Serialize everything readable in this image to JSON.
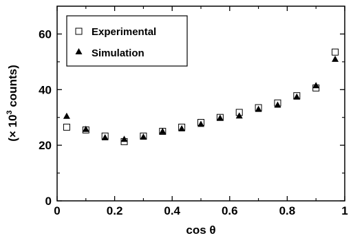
{
  "chart_data": {
    "type": "scatter",
    "xlabel": "cos θ",
    "ylabel_prefix": "(× 10",
    "ylabel_sup": "3",
    "ylabel_suffix": " counts)",
    "xlim": [
      0,
      1
    ],
    "ylim": [
      0,
      70
    ],
    "xticks": [
      0,
      0.2,
      0.4,
      0.6,
      0.8,
      1
    ],
    "xtick_labels": [
      "0",
      "0.2",
      "0.4",
      "0.6",
      "0.8",
      "1"
    ],
    "yticks": [
      0,
      20,
      40,
      60
    ],
    "ytick_labels": [
      "0",
      "20",
      "40",
      "60"
    ],
    "legend_position": "top-left",
    "series": [
      {
        "name": "Experimental",
        "marker": "open-square",
        "x": [
          0.0333,
          0.1,
          0.1667,
          0.2333,
          0.3,
          0.3667,
          0.4333,
          0.5,
          0.5667,
          0.6333,
          0.7,
          0.7667,
          0.8333,
          0.9,
          0.9667
        ],
        "y": [
          26.5,
          25.5,
          23.3,
          21.3,
          23.3,
          25.0,
          26.5,
          28.2,
          30.0,
          31.8,
          33.5,
          35.2,
          37.8,
          40.6,
          53.5
        ]
      },
      {
        "name": "Simulation",
        "marker": "filled-triangle",
        "x": [
          0.0333,
          0.1,
          0.1667,
          0.2333,
          0.3,
          0.3667,
          0.4333,
          0.5,
          0.5667,
          0.6333,
          0.7,
          0.7667,
          0.8333,
          0.9,
          0.9667
        ],
        "y": [
          30.5,
          25.8,
          22.8,
          22.2,
          23.0,
          25.0,
          26.0,
          27.6,
          29.8,
          30.6,
          33.0,
          34.5,
          37.4,
          41.5,
          51.0
        ]
      }
    ]
  }
}
